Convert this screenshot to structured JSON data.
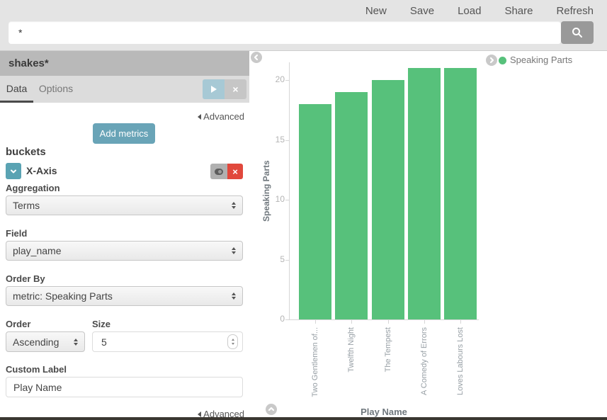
{
  "topbar": {
    "nav": [
      "New",
      "Save",
      "Load",
      "Share",
      "Refresh"
    ],
    "search": {
      "value": "*",
      "icon": "magnifier"
    }
  },
  "sidebar": {
    "index_pattern": "shakes*",
    "tabs": {
      "data": "Data",
      "options": "Options"
    },
    "advanced_label": "Advanced",
    "add_metrics_label": "Add metrics",
    "buckets": {
      "heading": "buckets",
      "bucket_title": "X-Axis",
      "aggregation": {
        "label": "Aggregation",
        "value": "Terms"
      },
      "field": {
        "label": "Field",
        "value": "play_name"
      },
      "order_by": {
        "label": "Order By",
        "value": "metric: Speaking Parts"
      },
      "order": {
        "label": "Order",
        "value": "Ascending"
      },
      "size": {
        "label": "Size",
        "value": "5"
      },
      "custom_label": {
        "label": "Custom Label",
        "value": "Play Name"
      },
      "advanced_label": "Advanced"
    }
  },
  "chart_data": {
    "type": "bar",
    "categories": [
      "Two Gentlemen of...",
      "Twelfth Night",
      "The Tempest",
      "A Comedy of Errors",
      "Loves Labours Lost"
    ],
    "series": [
      {
        "name": "Speaking Parts",
        "values": [
          18,
          19,
          20,
          21,
          21
        ]
      }
    ],
    "xlabel": "Play Name",
    "ylabel": "Speaking Parts",
    "ylim": [
      0,
      21
    ],
    "yticks": [
      0,
      5,
      10,
      15,
      20
    ],
    "bar_color": "#57c17b",
    "grid": false,
    "legend": {
      "position": "top-right",
      "entries": [
        {
          "label": "Speaking Parts",
          "color": "#57c17b"
        }
      ]
    }
  },
  "colors": {
    "accent_teal": "#69a4b7",
    "danger_red": "#e1483c",
    "series_green": "#57c17b"
  }
}
